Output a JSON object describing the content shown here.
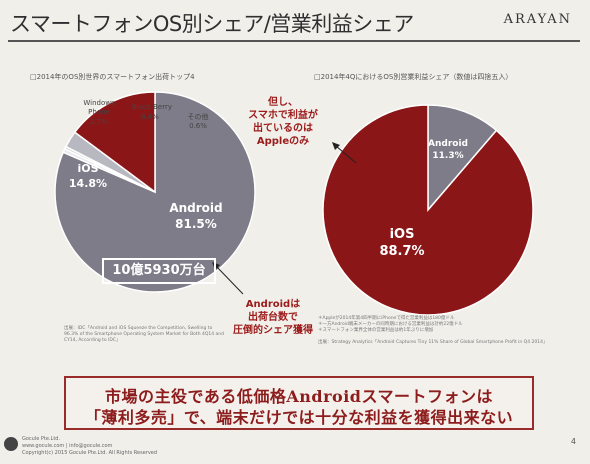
{
  "slide": {
    "title": "スマートフォンOS別シェア/営業利益シェア",
    "logo": "ARAYAN",
    "page_number": "4",
    "footer_line1": "市場の主役である低価格Androidスマートフォンは",
    "footer_line2": "「薄利多売」で、端末だけでは十分な利益を獲得出来ない",
    "company": "Gocule Pte.Ltd.",
    "contact": "www.gocule.com | info@gocule.com",
    "copyright": "Copyright(c) 2015 Gocule Pte.Ltd. All Rights Reserved",
    "colors": {
      "android": "#7e7c88",
      "ios": "#8b1618",
      "windows": "#b8b8c0",
      "blackberry": "#d4d4da",
      "other": "#e9e9ee",
      "annotation": "#9b1a1a"
    }
  },
  "left_chart": {
    "subtitle": "□2014年のOS別世界のスマートフォン出荷トップ4",
    "callout": "10億5930万台",
    "annotation": [
      "Androidは",
      "出荷台数で",
      "圧倒的シェア獲得"
    ],
    "source": [
      "出展：IDC「Android and iOS Squeeze the Competition, Swelling to",
      "96.3% of the Smartphone Operating System Market for Both 4Q14 and",
      "CY14, According to IDC」"
    ]
  },
  "right_chart": {
    "subtitle": "□2014年4QにおけるOS別営業利益シェア（数値は四捨五入）",
    "annotation": [
      "但し、",
      "スマホで利益が",
      "出ているのは",
      "Appleのみ"
    ],
    "notes": [
      "＊Appleが2014年第4四半期にiPhoneで得た営業利益は180億ドル",
      "＊一方Android端末メーカーの同時期における営業利益は計約22億ドル",
      "＊スマートフォン業界全体の営業利益は約1年ぶりに増加"
    ],
    "source": [
      "出展：Strategy Analytics「Android Captures Tiny 11% Share of Global Smartphone Profit in Q4 2014」"
    ]
  },
  "chart_data": [
    {
      "type": "pie",
      "title": "□2014年のOS別世界のスマートフォン出荷トップ4",
      "series": [
        {
          "name": "Android",
          "value": 81.5,
          "label": "81.5%",
          "color": "#7e7c88"
        },
        {
          "name": "iOS",
          "value": 14.8,
          "label": "14.8%",
          "color": "#8b1618"
        },
        {
          "name": "Windows Phone",
          "value": 2.7,
          "label": "2.7%",
          "color": "#b8b8c0"
        },
        {
          "name": "Black Berry",
          "value": 0.4,
          "label": "0.4%",
          "color": "#d4d4da"
        },
        {
          "name": "その他",
          "value": 0.6,
          "label": "0.6%",
          "color": "#e9e9ee"
        }
      ]
    },
    {
      "type": "pie",
      "title": "□2014年4QにおけるOS別営業利益シェア（数値は四捨五入）",
      "series": [
        {
          "name": "iOS",
          "value": 88.7,
          "label": "88.7%",
          "color": "#8b1618"
        },
        {
          "name": "Android",
          "value": 11.3,
          "label": "11.3%",
          "color": "#7e7c88"
        }
      ]
    }
  ]
}
